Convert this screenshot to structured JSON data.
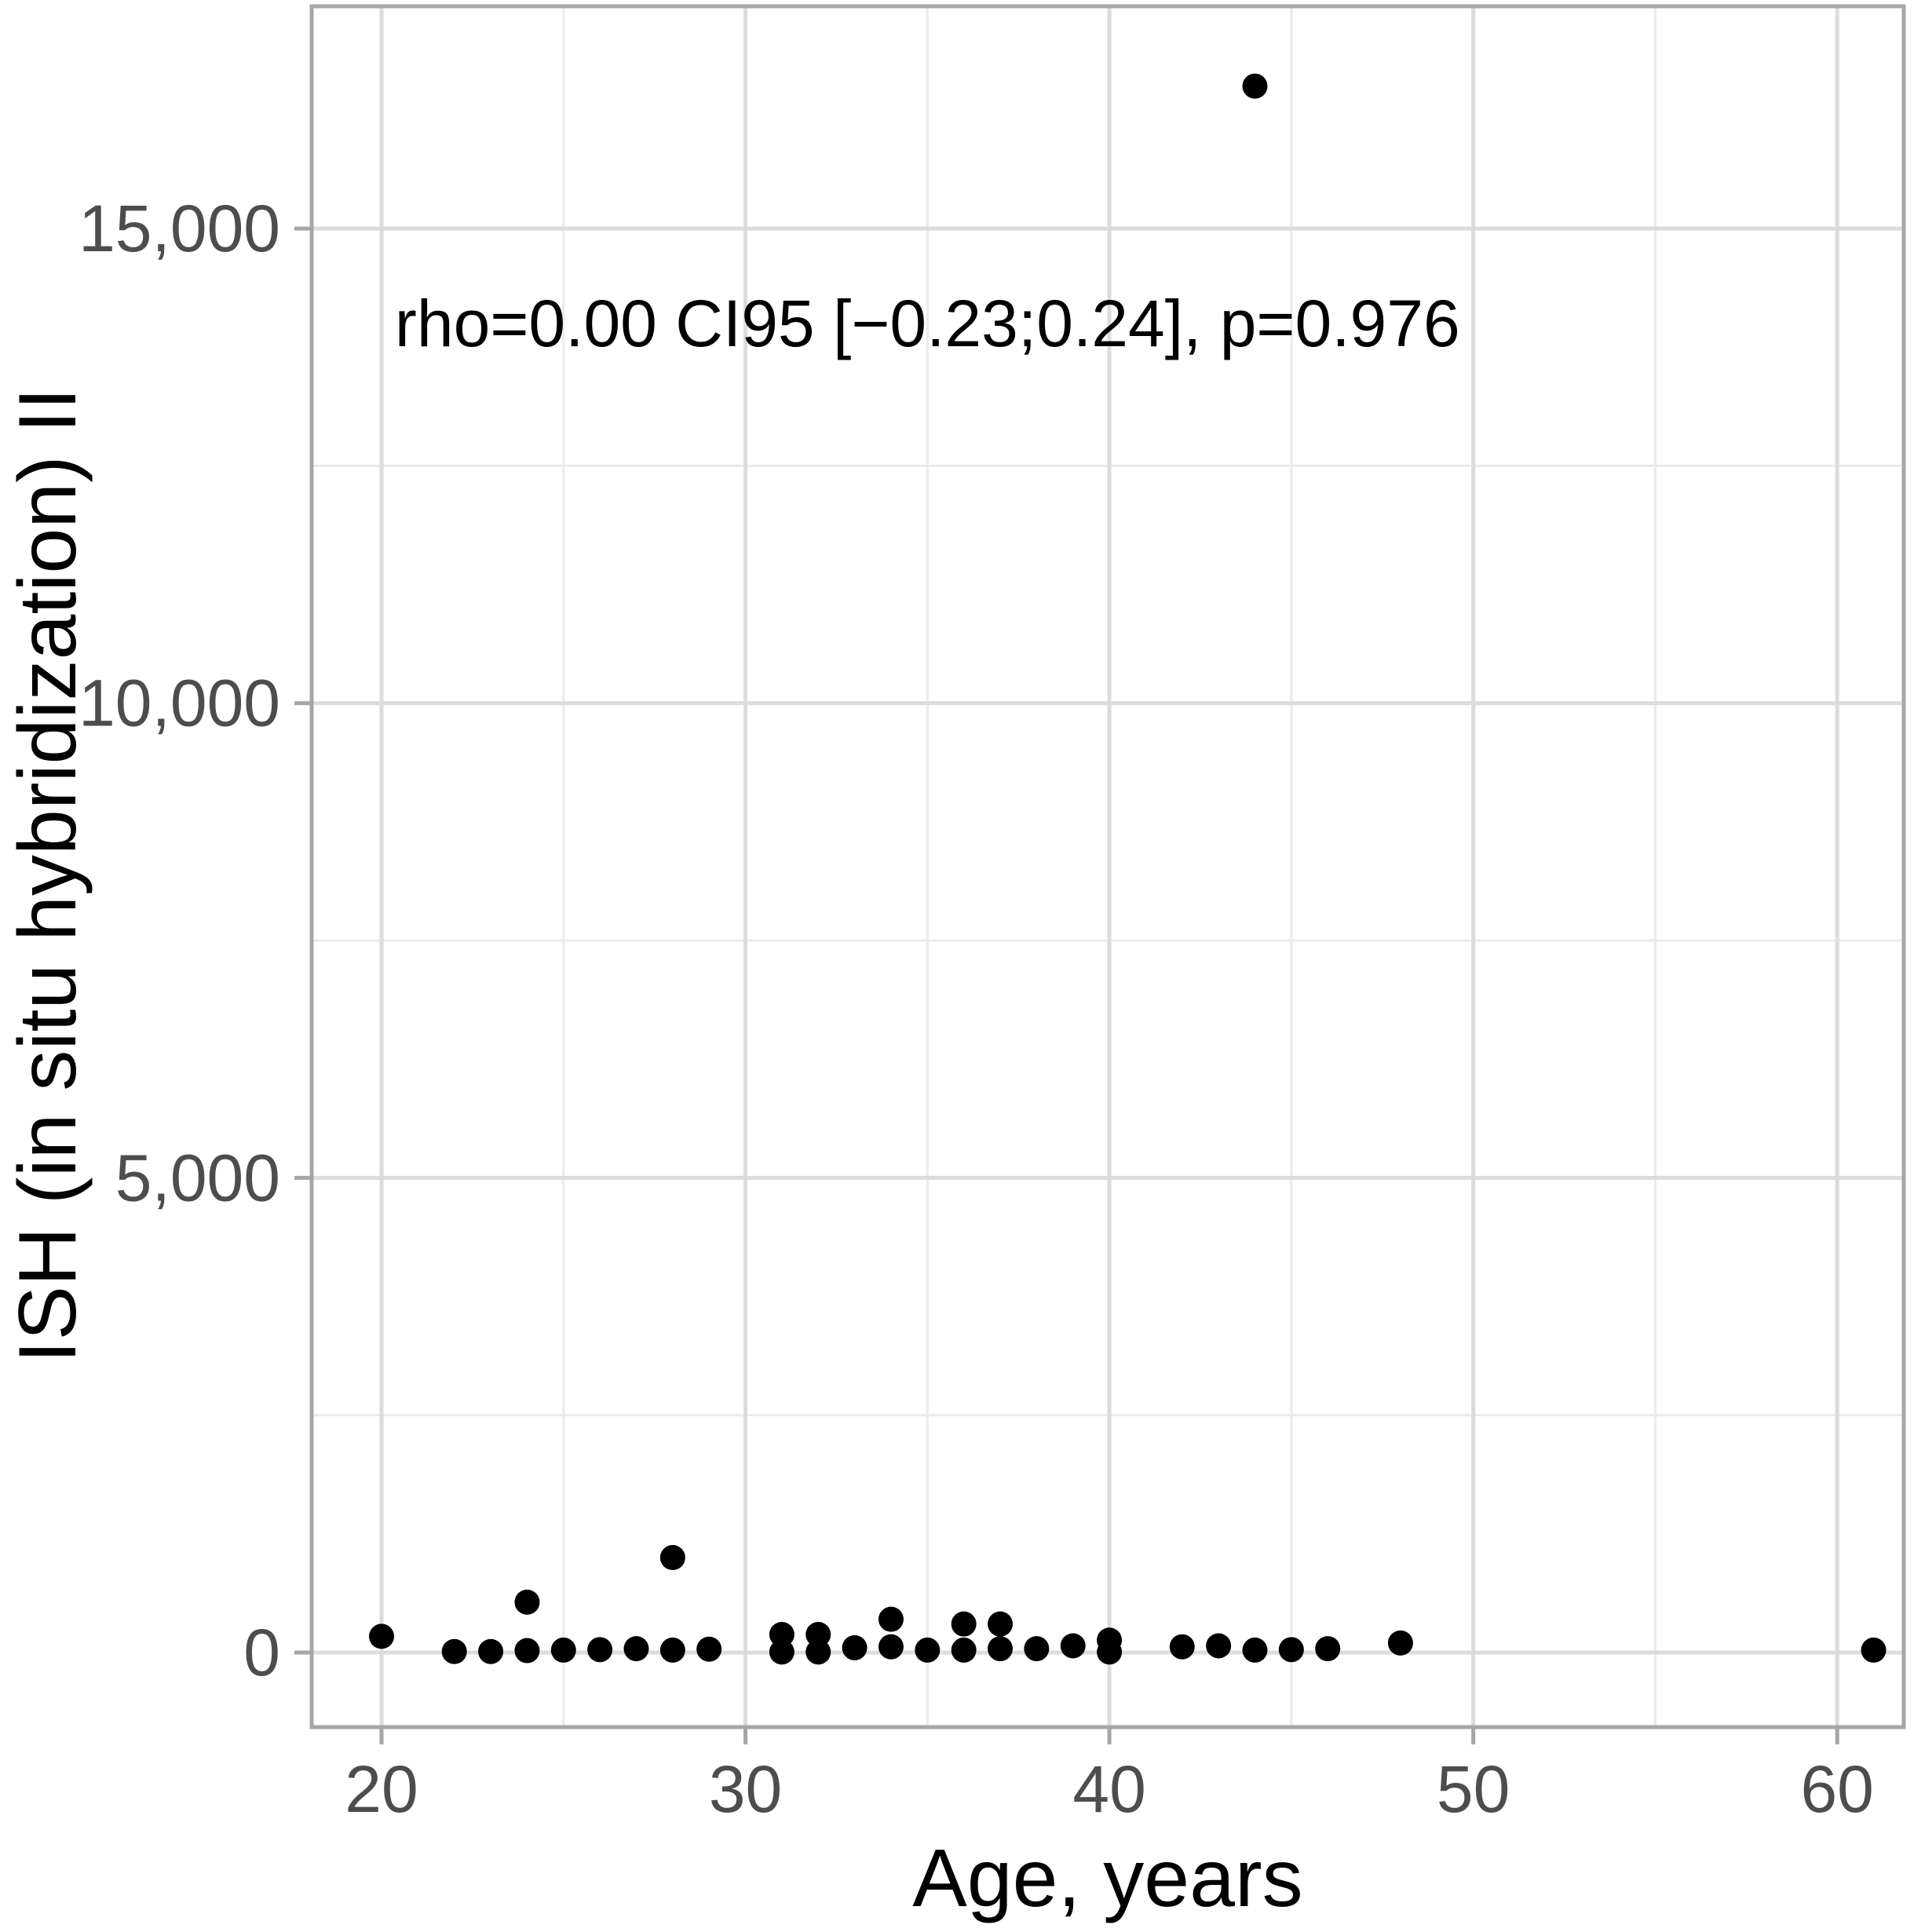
{
  "chart_data": {
    "type": "scatter",
    "title": "",
    "xlabel": "Age, years",
    "ylabel": "ISH (in situ hybridization) II",
    "annotation": {
      "text": "rho=0.00 CI95 [−0.23;0.24], p=0.976",
      "x": 35,
      "y": 14000
    },
    "x_ticks": [
      20,
      30,
      40,
      50,
      60
    ],
    "x_tick_labels": [
      "20",
      "30",
      "40",
      "50",
      "60"
    ],
    "x_minor_ticks": [
      25,
      35,
      45,
      55
    ],
    "y_ticks": [
      0,
      5000,
      10000,
      15000
    ],
    "y_tick_labels": [
      "0",
      "5,000",
      "10,000",
      "15,000"
    ],
    "y_minor_ticks": [
      2500,
      7500,
      12500
    ],
    "xlim": [
      18.08,
      61.83
    ],
    "ylim": [
      -786,
      17341
    ],
    "grid": true,
    "legend": false,
    "points": [
      [
        20,
        170
      ],
      [
        22,
        10
      ],
      [
        23,
        10
      ],
      [
        24,
        530
      ],
      [
        24,
        20
      ],
      [
        25,
        25
      ],
      [
        26,
        30
      ],
      [
        27,
        40
      ],
      [
        28,
        1000
      ],
      [
        28,
        25
      ],
      [
        29,
        35
      ],
      [
        31,
        190
      ],
      [
        31,
        5
      ],
      [
        32,
        190
      ],
      [
        32,
        5
      ],
      [
        33,
        50
      ],
      [
        34,
        350
      ],
      [
        34,
        60
      ],
      [
        35,
        25
      ],
      [
        36,
        300
      ],
      [
        36,
        25
      ],
      [
        37,
        300
      ],
      [
        37,
        40
      ],
      [
        38,
        40
      ],
      [
        39,
        70
      ],
      [
        40,
        130
      ],
      [
        40,
        5
      ],
      [
        42,
        60
      ],
      [
        43,
        70
      ],
      [
        44,
        16500
      ],
      [
        44,
        25
      ],
      [
        45,
        30
      ],
      [
        46,
        40
      ],
      [
        48,
        100
      ],
      [
        61,
        25
      ]
    ]
  },
  "style": {
    "background": "#ffffff",
    "panel_background": "#ffffff",
    "point_color": "#000000",
    "grid_major_color": "#dcdcdc",
    "grid_minor_color": "#ebebeb",
    "panel_border_color": "#a6a6a6",
    "tick_color": "#a6a6a6",
    "tick_label_color": "#4d4d4d",
    "text_color": "#000000"
  }
}
